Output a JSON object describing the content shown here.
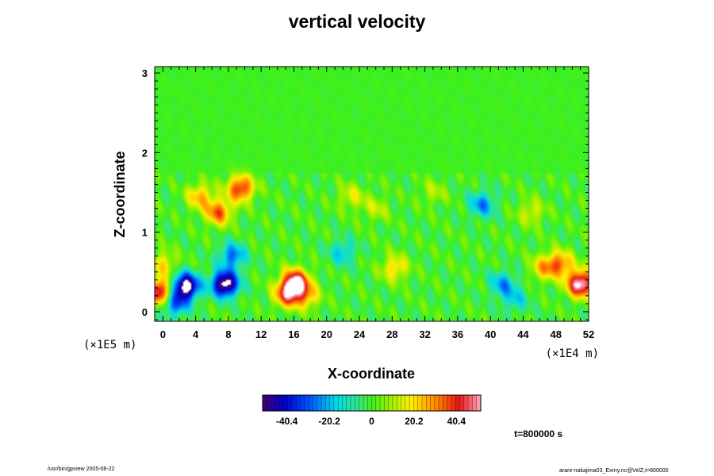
{
  "chart_data": {
    "type": "heatmap",
    "title": "vertical velocity",
    "xlabel": "X-coordinate",
    "ylabel": "Z-coordinate",
    "x_unit": "(×1E4 m)",
    "y_unit": "(×1E5 m)",
    "xlim": [
      -1,
      52
    ],
    "ylim": [
      -0.12,
      3.08
    ],
    "x_ticks": [
      "0",
      "4",
      "8",
      "12",
      "16",
      "20",
      "24",
      "28",
      "32",
      "36",
      "40",
      "44",
      "48",
      "52"
    ],
    "y_ticks": [
      "0",
      "1",
      "2",
      "3"
    ],
    "colorbar": {
      "range": [
        -52,
        52
      ],
      "tick_values": [
        -40.4,
        -20.2,
        0,
        20.2,
        40.4
      ],
      "tick_labels": [
        "-40.4",
        "-20.2",
        "0",
        "20.2",
        "40.4"
      ]
    },
    "background_value": 0,
    "features": [
      {
        "x": 2.8,
        "z": 0.32,
        "value": -60
      },
      {
        "x": 7.6,
        "z": 0.35,
        "value": -60
      },
      {
        "x": 1.5,
        "z": 0.1,
        "value": -30
      },
      {
        "x": 8.5,
        "z": 0.7,
        "value": -28
      },
      {
        "x": 6.8,
        "z": 1.25,
        "value": 35
      },
      {
        "x": 9.5,
        "z": 1.55,
        "value": 42
      },
      {
        "x": 4.5,
        "z": 1.45,
        "value": 25
      },
      {
        "x": 16.2,
        "z": 0.38,
        "value": 50
      },
      {
        "x": 15.2,
        "z": 0.22,
        "value": 40
      },
      {
        "x": 17.5,
        "z": 0.2,
        "value": 25
      },
      {
        "x": 28.3,
        "z": 0.55,
        "value": 22
      },
      {
        "x": 23.0,
        "z": 1.45,
        "value": 15
      },
      {
        "x": 26.0,
        "z": 1.3,
        "value": 12
      },
      {
        "x": 22.0,
        "z": 0.75,
        "value": -18
      },
      {
        "x": 39.0,
        "z": 1.35,
        "value": -25
      },
      {
        "x": 33.0,
        "z": 1.5,
        "value": 10
      },
      {
        "x": 41.5,
        "z": 0.35,
        "value": -22
      },
      {
        "x": 43.0,
        "z": 0.15,
        "value": -15
      },
      {
        "x": 46.5,
        "z": 0.55,
        "value": 22
      },
      {
        "x": 48.5,
        "z": 0.6,
        "value": 32
      },
      {
        "x": 51.0,
        "z": 0.35,
        "value": 58
      },
      {
        "x": 45.0,
        "z": 1.25,
        "value": 15
      },
      {
        "x": -0.5,
        "z": 0.25,
        "value": 50
      },
      {
        "x": 0.0,
        "z": 0.6,
        "value": 20
      }
    ]
  },
  "time_label": "t=800000 s",
  "footer_left": "/usr/bin/gpview 2005-08-22",
  "footer_right": "arare-nakajima03_Exrny.nc@VelZ,t=800000"
}
